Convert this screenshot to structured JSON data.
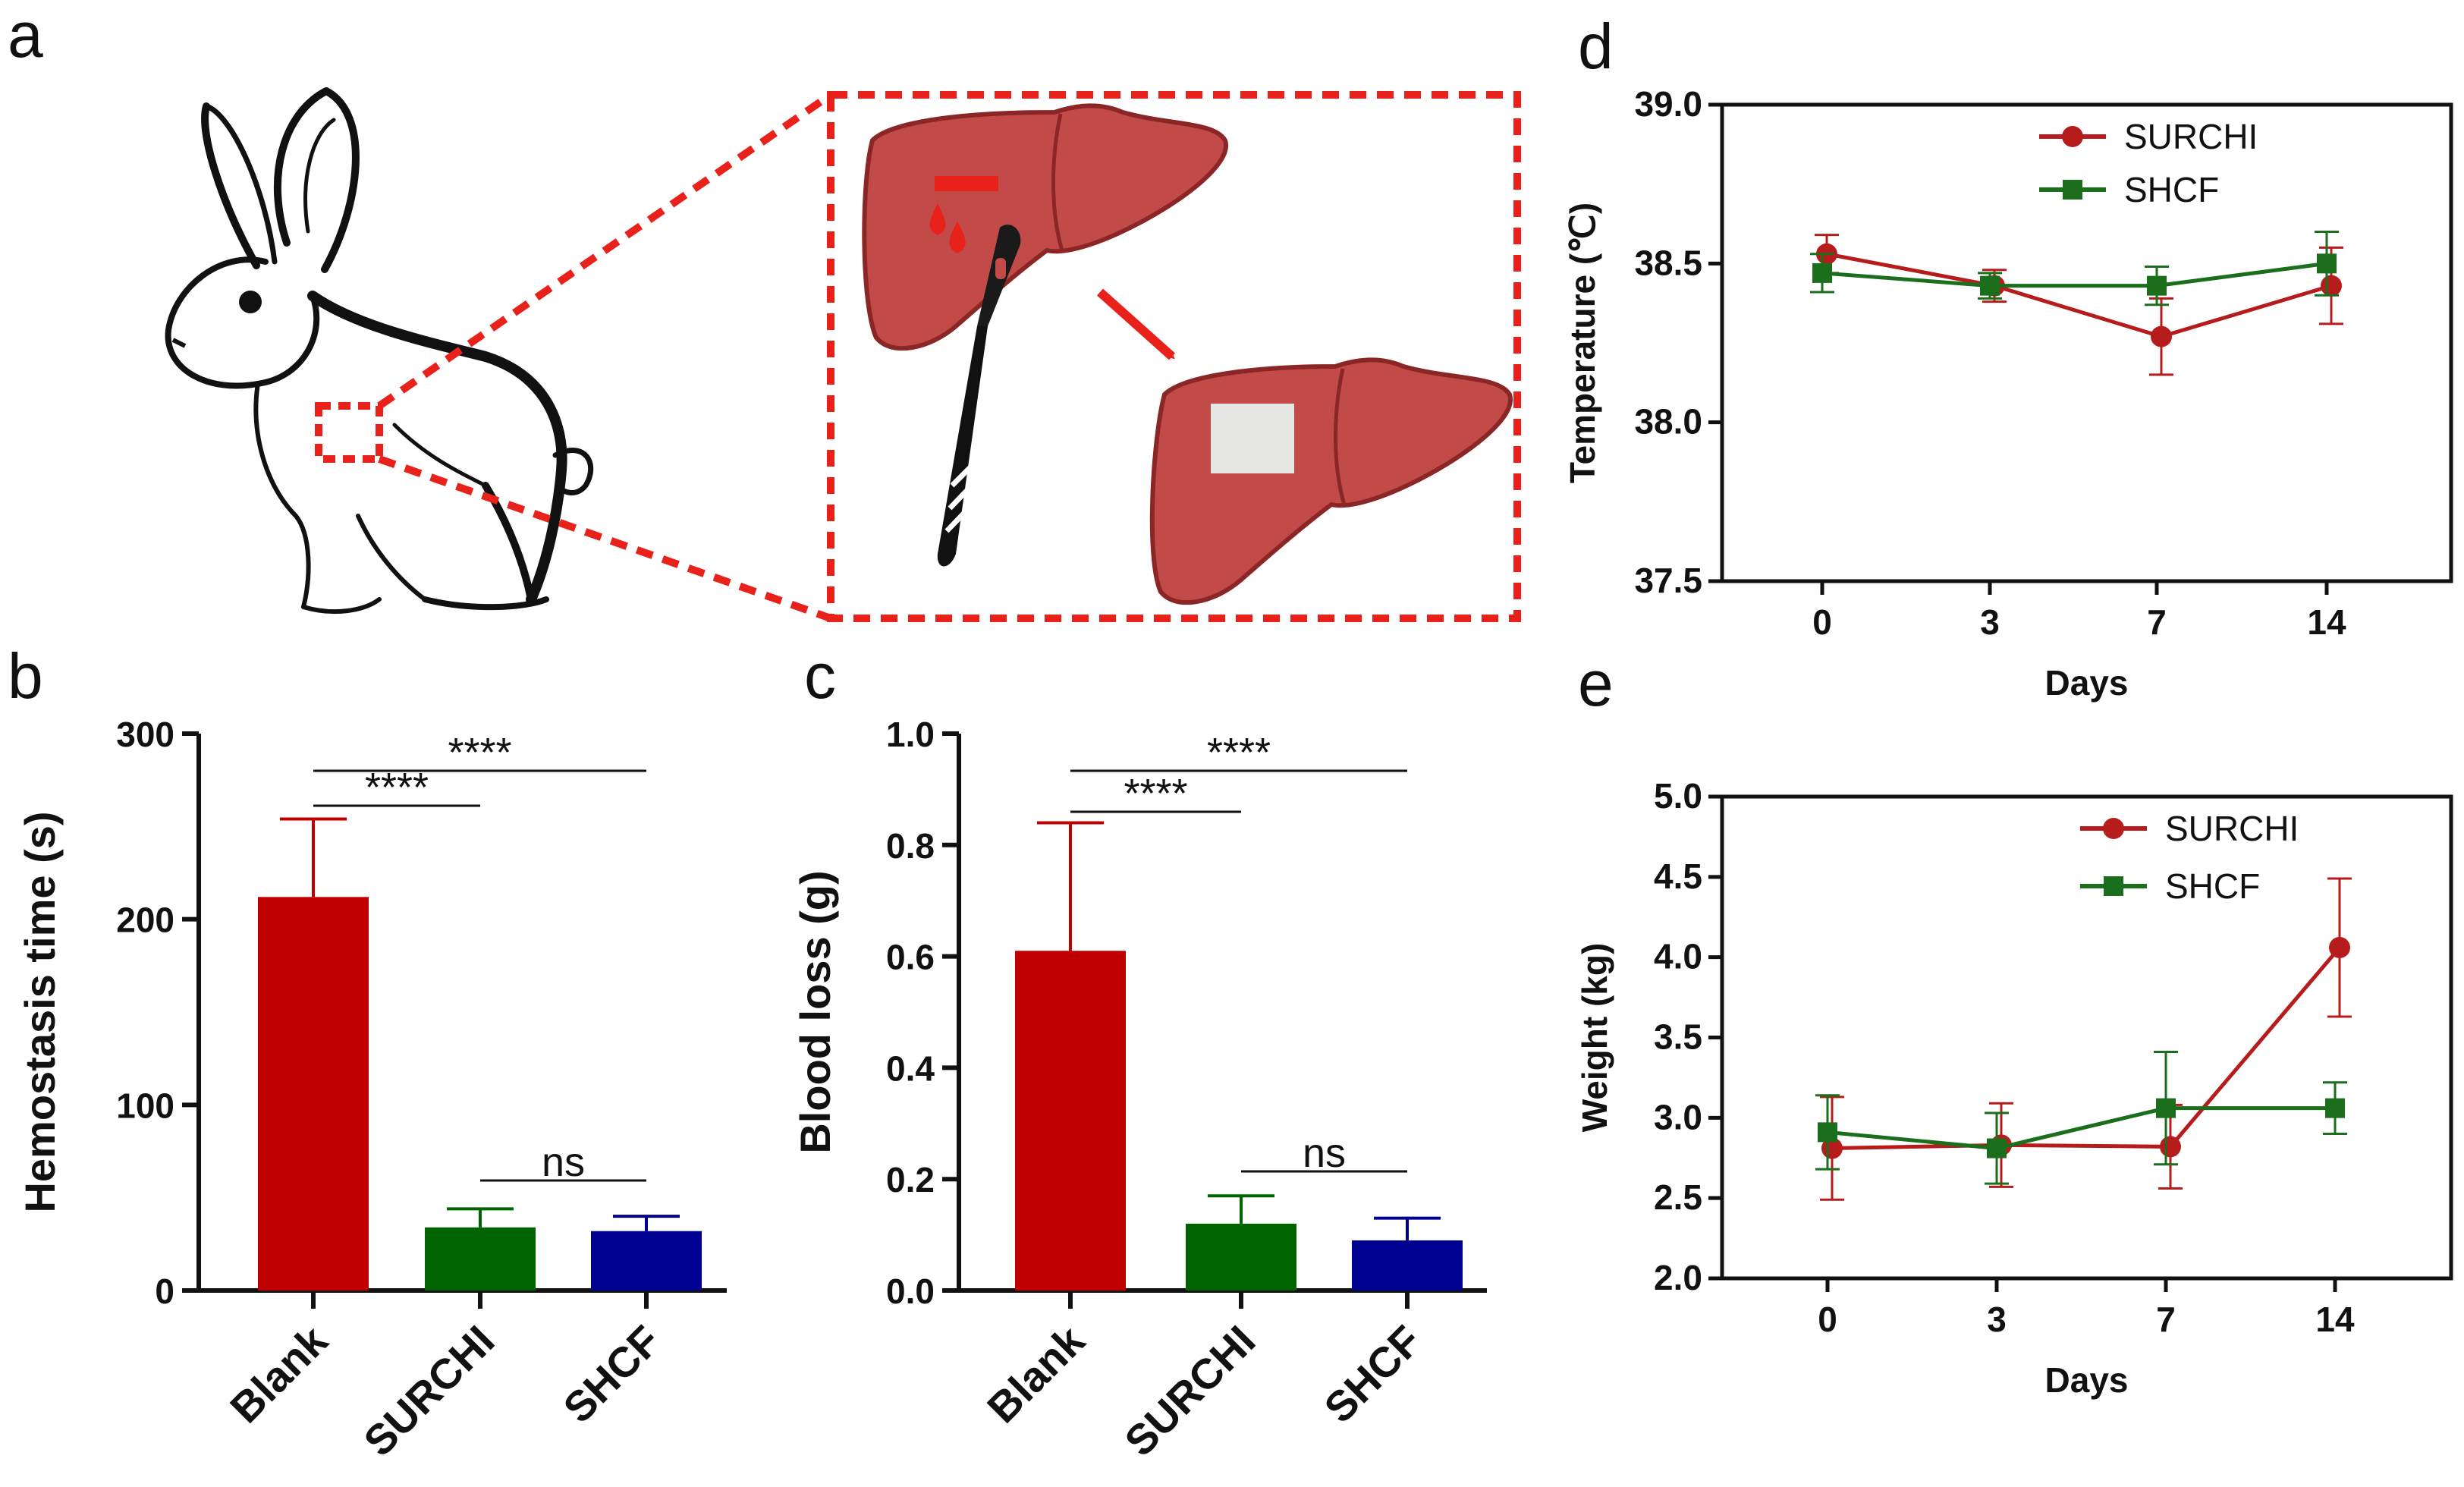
{
  "panel_labels": {
    "a": "a",
    "b": "b",
    "c": "c",
    "d": "d",
    "e": "e"
  },
  "colors": {
    "blank": "#c00000",
    "surchi": "#006400",
    "shcf": "#000090",
    "red_line": "#b71c1c",
    "green_line": "#1b6e1b",
    "zoom": "#e8221b",
    "liver": "#c24a49",
    "liver_dark": "#8b2626",
    "patch": "#e6e6e2"
  },
  "chart_data": [
    {
      "id": "b",
      "type": "bar",
      "title": "",
      "categories": [
        "Blank",
        "SURCHI",
        "SHCF"
      ],
      "values": [
        212,
        34,
        32
      ],
      "errors": [
        42,
        10,
        8
      ],
      "colors": [
        "#c00000",
        "#006400",
        "#000090"
      ],
      "ylabel": "Hemostasis time (s)",
      "xlabel": "",
      "ylim": [
        0,
        300
      ],
      "yticks": [
        0,
        100,
        200,
        300
      ],
      "significance": [
        {
          "from": 0,
          "to": 1,
          "label": "****"
        },
        {
          "from": 0,
          "to": 2,
          "label": "****"
        },
        {
          "from": 1,
          "to": 2,
          "label": "ns"
        }
      ]
    },
    {
      "id": "c",
      "type": "bar",
      "title": "",
      "categories": [
        "Blank",
        "SURCHI",
        "SHCF"
      ],
      "values": [
        0.61,
        0.12,
        0.09
      ],
      "errors": [
        0.23,
        0.05,
        0.04
      ],
      "colors": [
        "#c00000",
        "#006400",
        "#000090"
      ],
      "ylabel": "Blood loss  (g)",
      "xlabel": "",
      "ylim": [
        0,
        1.0
      ],
      "yticks": [
        "0.0",
        "0.2",
        "0.4",
        "0.6",
        "0.8",
        "1.0"
      ],
      "significance": [
        {
          "from": 0,
          "to": 1,
          "label": "****"
        },
        {
          "from": 0,
          "to": 2,
          "label": "****"
        },
        {
          "from": 1,
          "to": 2,
          "label": "ns"
        }
      ]
    },
    {
      "id": "d",
      "type": "line",
      "title": "",
      "x": [
        "0",
        "3",
        "7",
        "14"
      ],
      "series": [
        {
          "name": "SURCHI",
          "marker": "circle",
          "color": "#b71c1c",
          "values": [
            38.53,
            38.43,
            38.27,
            38.43
          ],
          "errors": [
            0.06,
            0.05,
            0.12,
            0.12
          ]
        },
        {
          "name": "SHCF",
          "marker": "square",
          "color": "#1b6e1b",
          "values": [
            38.47,
            38.43,
            38.43,
            38.5
          ],
          "errors": [
            0.06,
            0.04,
            0.06,
            0.1
          ]
        }
      ],
      "xlabel": "Days",
      "ylabel": "Temperature (℃)",
      "ylim": [
        37.5,
        39.0
      ],
      "yticks": [
        "37.5",
        "38.0",
        "38.5",
        "39.0"
      ],
      "legend": "top-right"
    },
    {
      "id": "e",
      "type": "line",
      "title": "",
      "x": [
        "0",
        "3",
        "7",
        "14"
      ],
      "series": [
        {
          "name": "SURCHI",
          "marker": "circle",
          "color": "#b71c1c",
          "values": [
            2.81,
            2.83,
            2.82,
            4.06
          ],
          "errors": [
            0.32,
            0.26,
            0.26,
            0.43
          ]
        },
        {
          "name": "SHCF",
          "marker": "square",
          "color": "#1b6e1b",
          "values": [
            2.91,
            2.81,
            3.06,
            3.06
          ],
          "errors": [
            0.23,
            0.22,
            0.35,
            0.16
          ]
        }
      ],
      "xlabel": "Days",
      "ylabel": "Weight (kg)",
      "ylim": [
        2.0,
        5.0
      ],
      "yticks": [
        "2.0",
        "2.5",
        "3.0",
        "3.5",
        "4.0",
        "4.5",
        "5.0"
      ],
      "legend": "top-right"
    }
  ]
}
